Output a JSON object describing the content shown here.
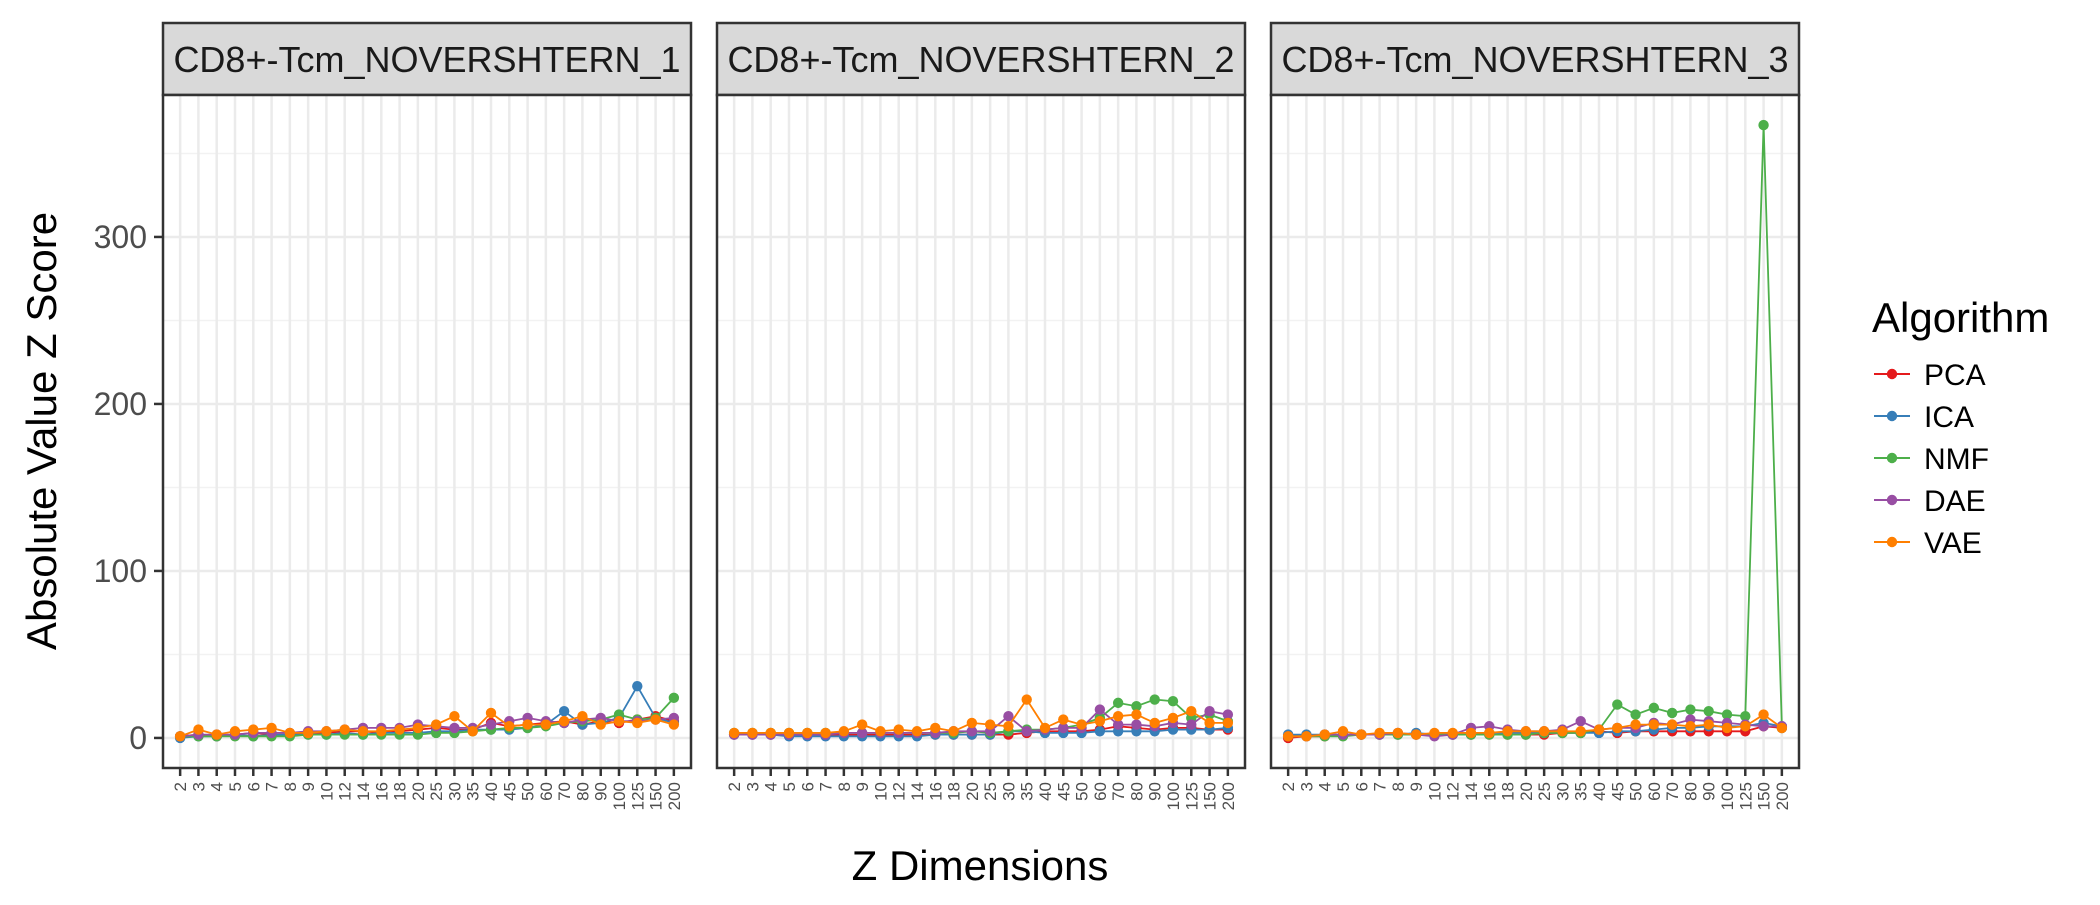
{
  "chart_data": {
    "type": "line",
    "facets": [
      "CD8+-Tcm_NOVERSHTERN_1",
      "CD8+-Tcm_NOVERSHTERN_2",
      "CD8+-Tcm_NOVERSHTERN_3"
    ],
    "categories": [
      "2",
      "3",
      "4",
      "5",
      "6",
      "7",
      "8",
      "9",
      "10",
      "12",
      "14",
      "16",
      "18",
      "20",
      "25",
      "30",
      "35",
      "40",
      "45",
      "50",
      "60",
      "70",
      "80",
      "90",
      "100",
      "125",
      "150",
      "200"
    ],
    "xlabel": "Z Dimensions",
    "ylabel": "Absolute Value Z Score",
    "yticks": [
      0,
      100,
      200,
      300
    ],
    "ylim": [
      -18,
      385
    ],
    "grid": true,
    "legend": {
      "title": "Algorithm",
      "position": "right",
      "items": [
        {
          "name": "PCA",
          "color": "#E41A1C"
        },
        {
          "name": "ICA",
          "color": "#377EB8"
        },
        {
          "name": "NMF",
          "color": "#4DAF4A"
        },
        {
          "name": "DAE",
          "color": "#984EA3"
        },
        {
          "name": "VAE",
          "color": "#FF7F00"
        }
      ]
    },
    "panels": [
      {
        "facet": "CD8+-Tcm_NOVERSHTERN_1",
        "series": [
          {
            "name": "PCA",
            "values": [
              1,
              2,
              1,
              2,
              3,
              2,
              2,
              3,
              3,
              4,
              4,
              3,
              4,
              5,
              6,
              5,
              5,
              9,
              7,
              8,
              9,
              10,
              8,
              10,
              9,
              11,
              13,
              10
            ]
          },
          {
            "name": "ICA",
            "values": [
              0,
              1,
              1,
              2,
              1,
              2,
              2,
              2,
              2,
              3,
              2,
              3,
              3,
              3,
              4,
              4,
              5,
              5,
              5,
              6,
              8,
              16,
              8,
              9,
              12,
              31,
              12,
              9
            ]
          },
          {
            "name": "NMF",
            "values": [
              1,
              1,
              1,
              1,
              1,
              1,
              1,
              2,
              2,
              2,
              2,
              2,
              2,
              2,
              3,
              3,
              4,
              5,
              6,
              6,
              7,
              9,
              10,
              11,
              14,
              11,
              12,
              24
            ]
          },
          {
            "name": "DAE",
            "values": [
              1,
              2,
              2,
              2,
              3,
              3,
              3,
              4,
              4,
              5,
              6,
              6,
              6,
              8,
              7,
              6,
              6,
              8,
              10,
              12,
              10,
              9,
              11,
              12,
              10,
              10,
              11,
              12
            ]
          },
          {
            "name": "VAE",
            "values": [
              1,
              5,
              2,
              4,
              5,
              6,
              3,
              3,
              4,
              5,
              4,
              4,
              5,
              6,
              8,
              13,
              4,
              15,
              7,
              8,
              8,
              10,
              13,
              8,
              10,
              9,
              11,
              8
            ]
          }
        ]
      },
      {
        "facet": "CD8+-Tcm_NOVERSHTERN_2",
        "series": [
          {
            "name": "PCA",
            "values": [
              2,
              2,
              2,
              2,
              2,
              2,
              2,
              2,
              2,
              2,
              2,
              2,
              2,
              2,
              2,
              2,
              3,
              4,
              4,
              4,
              5,
              7,
              6,
              5,
              6,
              6,
              5,
              5
            ]
          },
          {
            "name": "ICA",
            "values": [
              2,
              2,
              2,
              1,
              1,
              1,
              1,
              1,
              1,
              1,
              1,
              2,
              2,
              2,
              2,
              4,
              4,
              3,
              3,
              3,
              4,
              4,
              4,
              4,
              5,
              5,
              5,
              6
            ]
          },
          {
            "name": "NMF",
            "values": [
              3,
              3,
              3,
              3,
              3,
              3,
              3,
              3,
              3,
              3,
              3,
              3,
              3,
              4,
              3,
              4,
              5,
              5,
              6,
              8,
              12,
              21,
              19,
              23,
              22,
              12,
              14,
              10
            ]
          },
          {
            "name": "DAE",
            "values": [
              2,
              2,
              2,
              2,
              2,
              2,
              3,
              3,
              3,
              3,
              3,
              3,
              4,
              4,
              4,
              13,
              4,
              5,
              6,
              6,
              17,
              8,
              8,
              7,
              9,
              8,
              16,
              14
            ]
          },
          {
            "name": "VAE",
            "values": [
              3,
              3,
              3,
              3,
              3,
              3,
              4,
              8,
              4,
              5,
              4,
              6,
              4,
              9,
              8,
              7,
              23,
              6,
              11,
              8,
              10,
              13,
              14,
              9,
              12,
              16,
              9,
              9
            ]
          }
        ]
      },
      {
        "facet": "CD8+-Tcm_NOVERSHTERN_3",
        "series": [
          {
            "name": "PCA",
            "values": [
              0,
              1,
              1,
              2,
              2,
              2,
              2,
              2,
              2,
              2,
              2,
              2,
              2,
              2,
              2,
              3,
              3,
              4,
              3,
              4,
              4,
              4,
              4,
              4,
              4,
              4,
              7,
              6
            ]
          },
          {
            "name": "ICA",
            "values": [
              2,
              2,
              2,
              2,
              2,
              2,
              2,
              3,
              2,
              2,
              2,
              3,
              3,
              3,
              3,
              3,
              3,
              3,
              4,
              4,
              5,
              6,
              6,
              7,
              7,
              7,
              9,
              7
            ]
          },
          {
            "name": "NMF",
            "values": [
              1,
              1,
              1,
              1,
              2,
              2,
              2,
              2,
              2,
              2,
              2,
              2,
              2,
              2,
              3,
              3,
              3,
              5,
              20,
              14,
              18,
              15,
              17,
              16,
              14,
              13,
              367,
              6
            ]
          },
          {
            "name": "DAE",
            "values": [
              1,
              1,
              2,
              2,
              2,
              2,
              3,
              2,
              1,
              2,
              6,
              7,
              5,
              4,
              4,
              5,
              10,
              5,
              6,
              6,
              9,
              8,
              11,
              10,
              9,
              8,
              7,
              7
            ]
          },
          {
            "name": "VAE",
            "values": [
              1,
              1,
              2,
              4,
              2,
              3,
              3,
              2,
              3,
              3,
              3,
              3,
              4,
              4,
              4,
              4,
              4,
              5,
              6,
              8,
              8,
              8,
              7,
              8,
              6,
              7,
              14,
              6
            ]
          }
        ]
      }
    ]
  }
}
